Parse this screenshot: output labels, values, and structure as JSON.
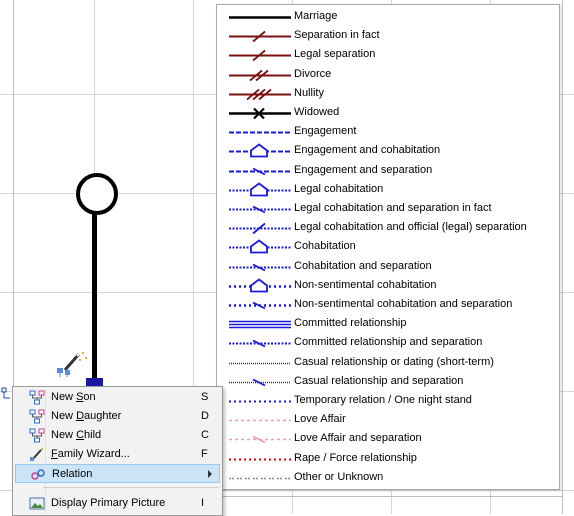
{
  "legend": {
    "items": [
      {
        "label": "Marriage",
        "style": "marriage"
      },
      {
        "label": "Separation in fact",
        "style": "sep-fact"
      },
      {
        "label": "Legal separation",
        "style": "legal-sep"
      },
      {
        "label": "Divorce",
        "style": "divorce"
      },
      {
        "label": "Nullity",
        "style": "nullity"
      },
      {
        "label": "Widowed",
        "style": "widowed"
      },
      {
        "label": "Engagement",
        "style": "engagement"
      },
      {
        "label": "Engagement and cohabitation",
        "style": "engage-cohab"
      },
      {
        "label": "Engagement and separation",
        "style": "engage-sep"
      },
      {
        "label": "Legal cohabitation",
        "style": "legal-cohab"
      },
      {
        "label": "Legal cohabitation and separation in fact",
        "style": "legal-cohab-sep"
      },
      {
        "label": "Legal cohabitation and official (legal) separation",
        "style": "legal-cohab-legal-sep"
      },
      {
        "label": "Cohabitation",
        "style": "cohab"
      },
      {
        "label": "Cohabitation and separation",
        "style": "cohab-sep"
      },
      {
        "label": "Non-sentimental cohabitation",
        "style": "nonsent-cohab"
      },
      {
        "label": "Non-sentimental cohabitation and separation",
        "style": "nonsent-cohab-sep"
      },
      {
        "label": "Committed relationship",
        "style": "committed"
      },
      {
        "label": "Committed relationship and separation",
        "style": "committed-sep"
      },
      {
        "label": "Casual relationship or dating (short-term)",
        "style": "casual"
      },
      {
        "label": "Casual relationship and separation",
        "style": "casual-sep"
      },
      {
        "label": "Temporary relation / One night stand",
        "style": "temporary"
      },
      {
        "label": "Love Affair",
        "style": "love-affair"
      },
      {
        "label": "Love Affair and separation",
        "style": "love-affair-sep"
      },
      {
        "label": "Rape / Force relationship",
        "style": "rape"
      },
      {
        "label": "Other or Unknown",
        "style": "other"
      }
    ]
  },
  "context_menu": {
    "items": [
      {
        "prefix": "New ",
        "underlined": "S",
        "suffix": "on",
        "shortcut": "S",
        "icon": "new-son-icon"
      },
      {
        "prefix": "New ",
        "underlined": "D",
        "suffix": "aughter",
        "shortcut": "D",
        "icon": "new-daughter-icon"
      },
      {
        "prefix": "New ",
        "underlined": "C",
        "suffix": "hild",
        "shortcut": "C",
        "icon": "new-child-icon"
      },
      {
        "prefix": "",
        "underlined": "F",
        "suffix": "amily Wizard...",
        "shortcut": "F",
        "icon": "family-wizard-icon"
      },
      {
        "prefix": "Relation",
        "underlined": "",
        "suffix": "",
        "shortcut": "",
        "icon": "relation-icon",
        "selected": true,
        "submenu": true
      },
      {
        "prefix": "Display Primary Picture",
        "underlined": "",
        "suffix": "",
        "shortcut": "I",
        "icon": "picture-icon"
      }
    ]
  },
  "colors": {
    "marriage": "#000000",
    "legal": "#7b1010",
    "blue": "#1a1adf",
    "pink": "#f29bb0",
    "red": "#e00000",
    "gray": "#8a8a8a",
    "menu_selected": "#cce4f7"
  }
}
